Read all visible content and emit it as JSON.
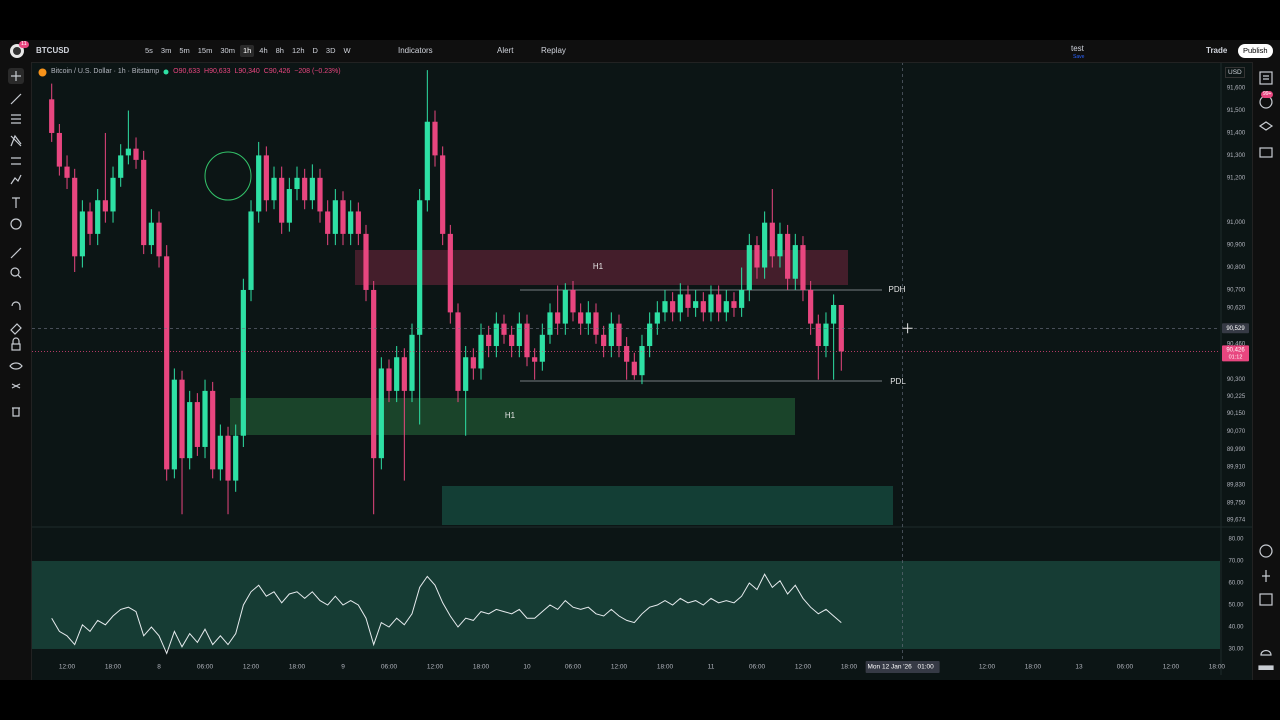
{
  "ui": {
    "toolbar": {
      "avatar_badge": "11",
      "symbol": "BTCUSD",
      "intervals": [
        "5s",
        "3m",
        "5m",
        "15m",
        "30m",
        "1h",
        "4h",
        "8h",
        "12h",
        "D",
        "3D",
        "W"
      ],
      "indicators": "Indicators",
      "alert": "Alert",
      "replay": "Replay",
      "layout_name": "test",
      "layout_status": "Save",
      "trade": "Trade",
      "publish": "Publish"
    },
    "legend": {
      "title": "Bitcoin / U.S. Dollar · 1h · Bitstamp",
      "open": "O90,633",
      "high": "H90,633",
      "low": "L90,340",
      "close": "C90,426",
      "change": "−208 (−0.23%)"
    },
    "currency": "USD",
    "sidebar_badge": "99+",
    "drawings": {
      "zone_upper": "H1",
      "zone_lower": "H1",
      "pdh": "PDH",
      "pdl": "PDL"
    }
  },
  "chart_data": [
    {
      "type": "candlestick",
      "up_color": "#2ee0a4",
      "down_color": "#e8467f",
      "grid": false,
      "xlim": [
        -4.57,
        150.4
      ],
      "ylim": [
        89652,
        91703
      ],
      "x": [
        -2,
        -1,
        0,
        1,
        2,
        3,
        4,
        5,
        6,
        7,
        8,
        9,
        10,
        11,
        12,
        13,
        14,
        15,
        16,
        17,
        18,
        19,
        20,
        21,
        22,
        23,
        24,
        25,
        26,
        27,
        28,
        29,
        30,
        31,
        32,
        33,
        34,
        35,
        36,
        37,
        38,
        39,
        40,
        41,
        42,
        43,
        44,
        45,
        46,
        47,
        48,
        49,
        50,
        51,
        52,
        53,
        54,
        55,
        56,
        57,
        58,
        59,
        60,
        61,
        62,
        63,
        64,
        65,
        66,
        67,
        68,
        69,
        70,
        71,
        72,
        73,
        74,
        75,
        76,
        77,
        78,
        79,
        80,
        81,
        82,
        83,
        84,
        85,
        86,
        87,
        88,
        89,
        90,
        91,
        92,
        93,
        94,
        95,
        96,
        97,
        98,
        99,
        100,
        101
      ],
      "open": [
        91550,
        91400,
        91250,
        91200,
        90850,
        91050,
        90950,
        91100,
        91050,
        91200,
        91300,
        91330,
        91280,
        90900,
        91000,
        90850,
        89900,
        90300,
        89950,
        90200,
        90000,
        90250,
        89900,
        90050,
        89850,
        90050,
        90700,
        91050,
        91300,
        91100,
        91200,
        91000,
        91150,
        91200,
        91100,
        91200,
        91050,
        90950,
        91100,
        90950,
        91050,
        90950,
        90700,
        89950,
        90350,
        90250,
        90400,
        90250,
        90500,
        91100,
        91450,
        91300,
        90950,
        90600,
        90250,
        90400,
        90350,
        90500,
        90450,
        90550,
        90500,
        90450,
        90550,
        90400,
        90380,
        90500,
        90600,
        90550,
        90700,
        90600,
        90550,
        90600,
        90500,
        90450,
        90550,
        90450,
        90380,
        90320,
        90450,
        90550,
        90600,
        90650,
        90600,
        90680,
        90620,
        90650,
        90600,
        90680,
        90600,
        90650,
        90620,
        90700,
        90900,
        90800,
        91000,
        90850,
        90950,
        90750,
        90900,
        90700,
        90550,
        90450,
        90550,
        90633
      ],
      "high": [
        91620,
        91440,
        91300,
        91240,
        91100,
        91090,
        91150,
        91400,
        91250,
        91350,
        91500,
        91380,
        91320,
        91060,
        91050,
        90900,
        90350,
        90340,
        90250,
        90240,
        90300,
        90290,
        90100,
        90090,
        90100,
        90750,
        91100,
        91360,
        91340,
        91250,
        91250,
        91200,
        91250,
        91240,
        91260,
        91240,
        91100,
        91150,
        91140,
        91100,
        91090,
        90990,
        90740,
        90400,
        90390,
        90450,
        90440,
        90550,
        91150,
        91680,
        91500,
        91340,
        90990,
        90640,
        90450,
        90440,
        90550,
        90540,
        90600,
        90590,
        90540,
        90600,
        90590,
        90440,
        90550,
        90640,
        90720,
        90730,
        90740,
        90640,
        90650,
        90640,
        90540,
        90600,
        90590,
        90490,
        90420,
        90500,
        90600,
        90650,
        90700,
        90690,
        90730,
        90720,
        90700,
        90690,
        90720,
        90720,
        90700,
        90690,
        90800,
        90950,
        90940,
        91050,
        91150,
        91000,
        90990,
        90950,
        90940,
        90740,
        90590,
        90600,
        90680,
        90633
      ],
      "low": [
        91360,
        91210,
        91150,
        90780,
        90800,
        90900,
        90900,
        91000,
        91000,
        91160,
        91260,
        91240,
        90860,
        90860,
        90800,
        89850,
        89860,
        89700,
        89900,
        89960,
        89950,
        89860,
        89850,
        89700,
        89800,
        90000,
        90650,
        91000,
        91050,
        91060,
        90950,
        90960,
        91100,
        91060,
        91060,
        91000,
        90900,
        90900,
        90900,
        90900,
        90900,
        90650,
        89700,
        89900,
        90200,
        90200,
        89850,
        90200,
        90100,
        91050,
        91250,
        90900,
        90550,
        90200,
        90050,
        90300,
        90300,
        90400,
        90400,
        90460,
        90400,
        90400,
        90360,
        90300,
        90340,
        90460,
        90500,
        90500,
        90560,
        90500,
        90500,
        90460,
        90400,
        90400,
        90400,
        90300,
        90300,
        90280,
        90400,
        90500,
        90560,
        90560,
        90560,
        90580,
        90580,
        90560,
        90560,
        90560,
        90560,
        90580,
        90580,
        90650,
        90750,
        90750,
        90800,
        90800,
        90700,
        90700,
        90650,
        90500,
        90300,
        90400,
        90300,
        90340
      ],
      "close": [
        91400,
        91250,
        91200,
        90850,
        91050,
        90950,
        91100,
        91050,
        91200,
        91300,
        91330,
        91280,
        90900,
        91000,
        90850,
        89900,
        90300,
        89950,
        90200,
        90000,
        90250,
        89900,
        90050,
        89850,
        90050,
        90700,
        91050,
        91300,
        91100,
        91200,
        91000,
        91150,
        91200,
        91100,
        91200,
        91050,
        90950,
        91100,
        90950,
        91050,
        90950,
        90700,
        89950,
        90350,
        90250,
        90400,
        90250,
        90500,
        91100,
        91450,
        91300,
        90950,
        90600,
        90250,
        90400,
        90350,
        90500,
        90450,
        90550,
        90500,
        90450,
        90550,
        90400,
        90380,
        90500,
        90600,
        90550,
        90700,
        90600,
        90550,
        90600,
        90500,
        90450,
        90550,
        90450,
        90380,
        90320,
        90450,
        90550,
        90600,
        90650,
        90600,
        90680,
        90620,
        90650,
        90600,
        90680,
        90600,
        90650,
        90620,
        90700,
        90900,
        90800,
        91000,
        90850,
        90950,
        90750,
        90900,
        90700,
        90550,
        90450,
        90550,
        90633,
        90426
      ],
      "yticks": [
        {
          "value": 91600,
          "label": "91,600"
        },
        {
          "value": 91500,
          "label": "91,500"
        },
        {
          "value": 91400,
          "label": "91,400"
        },
        {
          "value": 91300,
          "label": "91,300"
        },
        {
          "value": 91200,
          "label": "91,200"
        },
        {
          "value": 91000,
          "label": "91,000"
        },
        {
          "value": 90900,
          "label": "90,900"
        },
        {
          "value": 90800,
          "label": "90,800"
        },
        {
          "value": 90700,
          "label": "90,700"
        },
        {
          "value": 90620,
          "label": "90,620"
        },
        {
          "value": 90460,
          "label": "90,460"
        },
        {
          "value": 90300,
          "label": "90,300"
        },
        {
          "value": 90225,
          "label": "90,225"
        },
        {
          "value": 90150,
          "label": "90,150"
        },
        {
          "value": 90070,
          "label": "90,070"
        },
        {
          "value": 89990,
          "label": "89,990"
        },
        {
          "value": 89910,
          "label": "89,910"
        },
        {
          "value": 89830,
          "label": "89,830"
        },
        {
          "value": 89750,
          "label": "89,750"
        },
        {
          "value": 89674,
          "label": "89,674"
        }
      ],
      "xticks": [
        {
          "value": 0,
          "label": "12:00"
        },
        {
          "value": 6,
          "label": "18:00"
        },
        {
          "value": 12,
          "label": "8"
        },
        {
          "value": 18,
          "label": "06:00"
        },
        {
          "value": 24,
          "label": "12:00"
        },
        {
          "value": 30,
          "label": "18:00"
        },
        {
          "value": 36,
          "label": "9"
        },
        {
          "value": 42,
          "label": "06:00"
        },
        {
          "value": 48,
          "label": "12:00"
        },
        {
          "value": 54,
          "label": "18:00"
        },
        {
          "value": 60,
          "label": "10"
        },
        {
          "value": 66,
          "label": "06:00"
        },
        {
          "value": 72,
          "label": "12:00"
        },
        {
          "value": 78,
          "label": "18:00"
        },
        {
          "value": 84,
          "label": "11"
        },
        {
          "value": 90,
          "label": "06:00"
        },
        {
          "value": 96,
          "label": "12:00"
        },
        {
          "value": 102,
          "label": "18:00"
        },
        {
          "value": 120,
          "label": "12:00"
        },
        {
          "value": 126,
          "label": "18:00"
        },
        {
          "value": 132,
          "label": "13"
        },
        {
          "value": 138,
          "label": "06:00"
        },
        {
          "value": 144,
          "label": "12:00"
        },
        {
          "value": 150,
          "label": "18:00"
        }
      ],
      "last_price": {
        "value": 90426,
        "label": "90,426"
      },
      "countdown": "01:12",
      "crosshair": {
        "x": 109,
        "y": {
          "value": 90529,
          "label": "90,529"
        },
        "date": "Mon 12 Jan '26",
        "time": "01:00"
      }
    },
    {
      "type": "line",
      "color": "#e6ebee",
      "band_color": "#163c34",
      "xlim": [
        -4.57,
        150.4
      ],
      "ylim": [
        25.9,
        84.1
      ],
      "band": [
        30,
        70
      ],
      "x": [
        -2,
        -1,
        0,
        1,
        2,
        3,
        4,
        5,
        6,
        7,
        8,
        9,
        10,
        11,
        12,
        13,
        14,
        15,
        16,
        17,
        18,
        19,
        20,
        21,
        22,
        23,
        24,
        25,
        26,
        27,
        28,
        29,
        30,
        31,
        32,
        33,
        34,
        35,
        36,
        37,
        38,
        39,
        40,
        41,
        42,
        43,
        44,
        45,
        46,
        47,
        48,
        49,
        50,
        51,
        52,
        53,
        54,
        55,
        56,
        57,
        58,
        59,
        60,
        61,
        62,
        63,
        64,
        65,
        66,
        67,
        68,
        69,
        70,
        71,
        72,
        73,
        74,
        75,
        76,
        77,
        78,
        79,
        80,
        81,
        82,
        83,
        84,
        85,
        86,
        87,
        88,
        89,
        90,
        91,
        92,
        93,
        94,
        95,
        96,
        97,
        98,
        99,
        100,
        101
      ],
      "values": [
        44,
        38,
        36,
        32,
        41,
        38,
        43,
        41,
        45,
        48,
        49,
        47,
        36,
        40,
        36,
        28,
        38,
        31,
        37,
        33,
        39,
        32,
        36,
        32,
        37,
        50,
        56,
        59,
        54,
        56,
        51,
        55,
        56,
        53,
        56,
        52,
        50,
        54,
        50,
        52,
        50,
        44,
        32,
        42,
        40,
        44,
        41,
        46,
        58,
        63,
        59,
        51,
        45,
        40,
        44,
        43,
        47,
        46,
        48,
        47,
        46,
        48,
        44,
        44,
        47,
        50,
        48,
        52,
        49,
        48,
        49,
        46,
        45,
        48,
        45,
        43,
        42,
        46,
        49,
        50,
        52,
        50,
        53,
        51,
        52,
        50,
        53,
        51,
        52,
        51,
        54,
        60,
        57,
        64,
        58,
        61,
        55,
        59,
        53,
        49,
        46,
        48,
        45,
        42
      ],
      "yticks": [
        {
          "value": 80,
          "label": "80.00"
        },
        {
          "value": 70,
          "label": "70.00"
        },
        {
          "value": 60,
          "label": "60.00"
        },
        {
          "value": 50,
          "label": "50.00"
        },
        {
          "value": 40,
          "label": "40.00"
        },
        {
          "value": 30,
          "label": "30.00"
        }
      ]
    }
  ]
}
